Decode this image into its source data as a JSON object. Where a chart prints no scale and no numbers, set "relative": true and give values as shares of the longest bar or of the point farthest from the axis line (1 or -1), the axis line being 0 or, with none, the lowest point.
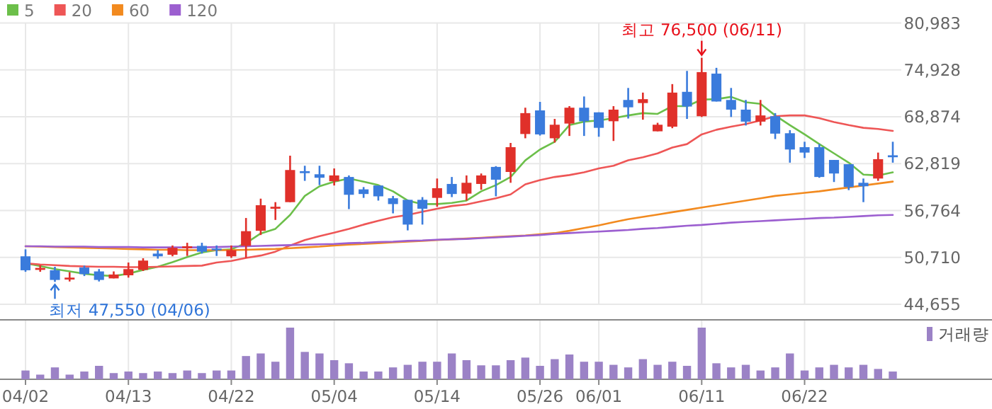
{
  "chart_data": [
    {
      "type": "candlestick",
      "categories": [
        "04/02",
        null,
        null,
        null,
        null,
        null,
        null,
        "04/13",
        null,
        null,
        null,
        null,
        null,
        null,
        "04/22",
        null,
        null,
        null,
        null,
        null,
        null,
        "05/04",
        null,
        null,
        null,
        null,
        null,
        null,
        "05/14",
        null,
        null,
        null,
        null,
        null,
        null,
        "05/26",
        null,
        null,
        null,
        "06/01",
        null,
        null,
        null,
        null,
        null,
        null,
        "06/11",
        null,
        null,
        null,
        null,
        null,
        null,
        "06/22",
        null,
        null,
        null,
        null,
        null,
        null
      ],
      "ohlc": [
        [
          50850,
          51750,
          48850,
          49050
        ],
        [
          49100,
          49700,
          48850,
          49350
        ],
        [
          49050,
          49500,
          47550,
          47800
        ],
        [
          47850,
          48800,
          47600,
          48100
        ],
        [
          49400,
          49650,
          48300,
          48550
        ],
        [
          48900,
          49200,
          47600,
          47800
        ],
        [
          48000,
          48900,
          48000,
          48500
        ],
        [
          48400,
          50050,
          48100,
          49200
        ],
        [
          49100,
          50600,
          48950,
          50300
        ],
        [
          51200,
          51650,
          50550,
          50850
        ],
        [
          51050,
          52250,
          50850,
          51950
        ],
        [
          51900,
          52600,
          50900,
          52150
        ],
        [
          52200,
          52600,
          51200,
          51450
        ],
        [
          51850,
          52250,
          50900,
          51700
        ],
        [
          50850,
          52250,
          50650,
          51650
        ],
        [
          52200,
          55800,
          50650,
          54100
        ],
        [
          54150,
          58300,
          53600,
          57450
        ],
        [
          57000,
          57850,
          55550,
          57250
        ],
        [
          57850,
          63850,
          57850,
          62000
        ],
        [
          61850,
          62550,
          60600,
          61600
        ],
        [
          61450,
          62550,
          60050,
          61000
        ],
        [
          60550,
          62200,
          60000,
          61300
        ],
        [
          61100,
          61300,
          56950,
          58800
        ],
        [
          59500,
          59800,
          58400,
          58900
        ],
        [
          60000,
          60000,
          58050,
          58600
        ],
        [
          58350,
          58650,
          56400,
          57600
        ],
        [
          58150,
          58150,
          54200,
          54950
        ],
        [
          58150,
          58500,
          54950,
          57000
        ],
        [
          58400,
          60900,
          57250,
          59650
        ],
        [
          60200,
          61100,
          58500,
          58900
        ],
        [
          58950,
          61300,
          58050,
          60350
        ],
        [
          60200,
          61550,
          59450,
          61300
        ],
        [
          62400,
          62500,
          58600,
          60750
        ],
        [
          61750,
          65500,
          60350,
          64950
        ],
        [
          66650,
          70050,
          66100,
          69350
        ],
        [
          69700,
          70800,
          66450,
          66600
        ],
        [
          66100,
          68600,
          65550,
          67850
        ],
        [
          68000,
          70250,
          66400,
          70050
        ],
        [
          70050,
          71500,
          66400,
          68300
        ],
        [
          69450,
          69450,
          66300,
          67450
        ],
        [
          68300,
          70250,
          65750,
          69800
        ],
        [
          71050,
          72600,
          68650,
          70100
        ],
        [
          70650,
          72000,
          68500,
          71150
        ],
        [
          67000,
          68100,
          67000,
          67850
        ],
        [
          67600,
          73100,
          67400,
          72000
        ],
        [
          72100,
          74800,
          68600,
          70200
        ],
        [
          68950,
          76500,
          68850,
          74650
        ],
        [
          74450,
          75200,
          70850,
          70850
        ],
        [
          71050,
          72600,
          68850,
          69800
        ],
        [
          69800,
          71050,
          67750,
          68250
        ],
        [
          68250,
          71050,
          67750,
          69050
        ],
        [
          68950,
          69350,
          66000,
          66700
        ],
        [
          66750,
          67150,
          62950,
          64650
        ],
        [
          64950,
          65650,
          63550,
          64250
        ],
        [
          64950,
          65350,
          61000,
          61100
        ],
        [
          63300,
          63300,
          60450,
          61550
        ],
        [
          62750,
          62750,
          59400,
          59800
        ],
        [
          60350,
          60900,
          57850,
          59900
        ],
        [
          60900,
          64250,
          60600,
          63400
        ],
        [
          63900,
          65650,
          62950,
          63650
        ]
      ],
      "series": [
        {
          "name": "5",
          "type": "line",
          "color": "#6cbf4a",
          "values": [
            49950,
            49600,
            49200,
            48900,
            48600,
            48400,
            48300,
            48600,
            49100,
            49500,
            50100,
            50750,
            51350,
            51650,
            51750,
            52550,
            53800,
            54400,
            56200,
            58650,
            59900,
            60500,
            60900,
            60500,
            60050,
            59250,
            58050,
            57600,
            57600,
            57750,
            58050,
            59250,
            60050,
            61100,
            63250,
            64650,
            65650,
            67800,
            68250,
            68400,
            68700,
            69050,
            69350,
            69250,
            70250,
            70250,
            71100,
            71150,
            71450,
            70750,
            70550,
            69050,
            67800,
            66600,
            65350,
            64150,
            62950,
            61400,
            61300,
            61700
          ]
        },
        {
          "name": "20",
          "type": "line",
          "color": "#ee5656",
          "values": [
            49950,
            49800,
            49700,
            49600,
            49550,
            49500,
            49500,
            49450,
            49450,
            49500,
            49550,
            49600,
            49650,
            50050,
            50250,
            50650,
            50950,
            51450,
            52250,
            52950,
            53450,
            53900,
            54400,
            54950,
            55450,
            55900,
            56200,
            56600,
            57000,
            57350,
            57550,
            57950,
            58350,
            58850,
            60150,
            60700,
            61100,
            61350,
            61700,
            62200,
            62550,
            63250,
            63650,
            64150,
            64900,
            65350,
            66600,
            67200,
            67600,
            67950,
            68400,
            68950,
            69050,
            69050,
            68700,
            68200,
            67800,
            67450,
            67300,
            67050
          ]
        },
        {
          "name": "60",
          "type": "line",
          "color": "#f28a1f",
          "values": [
            52150,
            52100,
            52050,
            52000,
            51950,
            51900,
            51850,
            51800,
            51750,
            51700,
            51700,
            51650,
            51650,
            51650,
            51650,
            51700,
            51750,
            51800,
            51900,
            52000,
            52100,
            52250,
            52350,
            52450,
            52550,
            52650,
            52750,
            52850,
            52950,
            53050,
            53150,
            53250,
            53350,
            53450,
            53550,
            53700,
            53850,
            54150,
            54500,
            54850,
            55250,
            55650,
            55950,
            56250,
            56550,
            56850,
            57150,
            57450,
            57750,
            58050,
            58350,
            58650,
            58850,
            59050,
            59250,
            59500,
            59750,
            60000,
            60250,
            60500
          ]
        },
        {
          "name": "120",
          "type": "line",
          "color": "#9c5fd0",
          "values": [
            52150,
            52150,
            52100,
            52100,
            52100,
            52050,
            52050,
            52050,
            52000,
            52000,
            52000,
            52000,
            52000,
            52050,
            52100,
            52150,
            52200,
            52250,
            52300,
            52350,
            52400,
            52450,
            52550,
            52600,
            52700,
            52750,
            52850,
            52900,
            53000,
            53050,
            53100,
            53200,
            53300,
            53400,
            53500,
            53600,
            53750,
            53850,
            53950,
            54050,
            54150,
            54250,
            54400,
            54500,
            54650,
            54800,
            54900,
            55050,
            55200,
            55300,
            55400,
            55500,
            55600,
            55700,
            55800,
            55850,
            55950,
            56050,
            56150,
            56200
          ]
        }
      ],
      "ylim": [
        44655,
        80983
      ],
      "yticks": [
        {
          "value": 44655,
          "label": "44,655"
        },
        {
          "value": 50710,
          "label": "50,710"
        },
        {
          "value": 56764,
          "label": "56,764"
        },
        {
          "value": 62819,
          "label": "62,819"
        },
        {
          "value": 68874,
          "label": "68,874"
        },
        {
          "value": 74928,
          "label": "74,928"
        },
        {
          "value": 80983,
          "label": "80,983"
        }
      ],
      "grid": true,
      "legend": "top left",
      "tick_labels": "y",
      "annotations": [
        {
          "text": "최고 76,500 (06/11)",
          "x": "06/11",
          "y": 76500
        },
        {
          "text": "최저 47,550 (04/06)",
          "y": 47550
        }
      ]
    },
    {
      "type": "bar",
      "relative": true,
      "categories": [
        "04/02",
        null,
        null,
        null,
        null,
        null,
        null,
        "04/13",
        null,
        null,
        null,
        null,
        null,
        null,
        "04/22",
        null,
        null,
        null,
        null,
        null,
        null,
        "05/04",
        null,
        null,
        null,
        null,
        null,
        null,
        "05/14",
        null,
        null,
        null,
        null,
        null,
        null,
        "05/26",
        null,
        null,
        null,
        "06/01",
        null,
        null,
        null,
        null,
        null,
        null,
        "06/11",
        null,
        null,
        null,
        null,
        null,
        null,
        "06/22",
        null,
        null,
        null,
        null,
        null,
        null
      ],
      "series": [
        {
          "name": "거래량",
          "color": "#9b82c6",
          "values": [
            0.17,
            0.09,
            0.23,
            0.09,
            0.15,
            0.26,
            0.12,
            0.15,
            0.12,
            0.15,
            0.12,
            0.17,
            0.12,
            0.17,
            0.17,
            0.45,
            0.5,
            0.34,
            1,
            0.53,
            0.5,
            0.37,
            0.31,
            0.15,
            0.15,
            0.23,
            0.28,
            0.34,
            0.34,
            0.5,
            0.37,
            0.27,
            0.27,
            0.37,
            0.42,
            0.26,
            0.39,
            0.48,
            0.34,
            0.34,
            0.28,
            0.23,
            0.39,
            0.28,
            0.34,
            0.26,
            1,
            0.31,
            0.23,
            0.28,
            0.17,
            0.23,
            0.5,
            0.17,
            0.23,
            0.28,
            0.23,
            0.28,
            0.2,
            0.15
          ]
        }
      ],
      "grid": "x",
      "legend": "top right",
      "tick_labels": "x"
    }
  ]
}
